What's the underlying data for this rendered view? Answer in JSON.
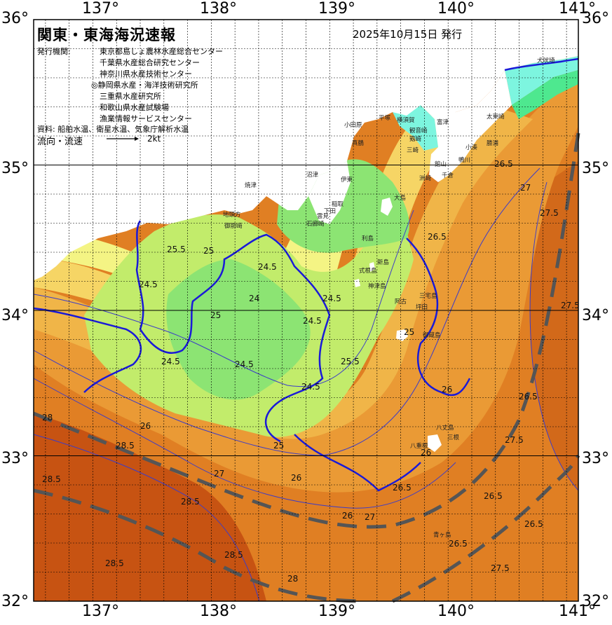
{
  "header": {
    "title": "関東・東海海況速報",
    "date": "2025年10月15日 発行",
    "agency_label": "発行機関:",
    "agencies": [
      "東京都島しょ農林水産総合センター",
      "千葉県水産総合研究センター",
      "神奈川県水産技術センター",
      "◎静岡県水産・海洋技術研究所",
      "三重県水産研究所",
      "和歌山県水産試験場",
      "漁業情報サービスセンター"
    ],
    "source": "資料: 船舶水温、衛星水温、気象庁解析水温",
    "flow_label": "流向・流速",
    "flow_unit": "2kt"
  },
  "axes": {
    "lon_labels": [
      "137°",
      "138°",
      "139°",
      "140°",
      "141°"
    ],
    "lat_labels": [
      "36°",
      "35°",
      "34°",
      "33°",
      "32°"
    ]
  },
  "places": [
    {
      "name": "犬吠埼"
    },
    {
      "name": "太東崎"
    },
    {
      "name": "勝浦"
    },
    {
      "name": "小湊"
    },
    {
      "name": "鴨川"
    },
    {
      "name": "千倉"
    },
    {
      "name": "館山"
    },
    {
      "name": "洲崎"
    },
    {
      "name": "富津"
    },
    {
      "name": "横須賀"
    },
    {
      "name": "観音崎"
    },
    {
      "name": "剱崎"
    },
    {
      "name": "三崎"
    },
    {
      "name": "平塚"
    },
    {
      "name": "小田原"
    },
    {
      "name": "真鶴"
    },
    {
      "name": "伊東"
    },
    {
      "name": "稲取"
    },
    {
      "name": "下田"
    },
    {
      "name": "石廊崎"
    },
    {
      "name": "雲見"
    },
    {
      "name": "沼津"
    },
    {
      "name": "焼津"
    },
    {
      "name": "地頭方"
    },
    {
      "name": "御前崎"
    },
    {
      "name": "大島"
    },
    {
      "name": "利島"
    },
    {
      "name": "新島"
    },
    {
      "name": "式根島"
    },
    {
      "name": "神津島"
    },
    {
      "name": "三宅島"
    },
    {
      "name": "阿古"
    },
    {
      "name": "坪田"
    },
    {
      "name": "御蔵島"
    },
    {
      "name": "八丈島"
    },
    {
      "name": "三根"
    },
    {
      "name": "八重根"
    },
    {
      "name": "青ヶ島"
    }
  ],
  "contour_labels": [
    "24",
    "24.5",
    "25",
    "25.5",
    "26",
    "26.5",
    "27",
    "27.5",
    "28",
    "28.5"
  ],
  "colors": {
    "land": "#ffffff",
    "t_under_22": "#7df5df",
    "t_23": "#4ee88f",
    "t_24": "#8ce473",
    "t_24_5": "#c2ec6b",
    "t_25": "#f4f484",
    "t_25_5": "#f6d565",
    "t_26": "#f0b548",
    "t_26_5": "#ea9a35",
    "t_27": "#e07f23",
    "t_27_5": "#d2691a",
    "t_28": "#c75312",
    "contour_bold": "#1a1ad8",
    "contour_thin": "#3c3cc8",
    "current_axis": "#555555",
    "grid": "#000000"
  }
}
